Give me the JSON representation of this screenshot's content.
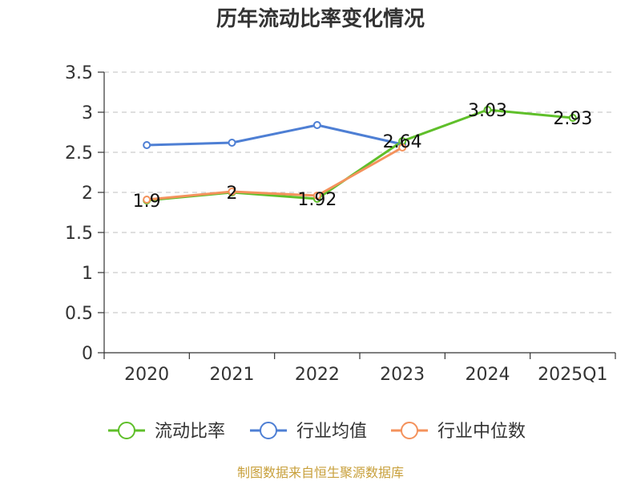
{
  "chart_data": {
    "type": "line",
    "title": "历年流动比率变化情况",
    "categories": [
      "2020",
      "2021",
      "2022",
      "2023",
      "2024",
      "2025Q1"
    ],
    "ylim": [
      0,
      3.5
    ],
    "yticks": [
      "0",
      "0.5",
      "1",
      "1.5",
      "2",
      "2.5",
      "3",
      "3.5"
    ],
    "grid": true,
    "legend_position": "bottom",
    "series": [
      {
        "name": "流动比率",
        "color": "#5fbf2a",
        "values": [
          1.9,
          2,
          1.92,
          2.64,
          3.03,
          2.93
        ],
        "labels": [
          "1.9",
          "2",
          "1.92",
          "2.64",
          "3.03",
          "2.93"
        ]
      },
      {
        "name": "行业均值",
        "color": "#4e7fd4",
        "values": [
          2.59,
          2.62,
          2.84,
          2.6,
          null,
          null
        ]
      },
      {
        "name": "行业中位数",
        "color": "#f4925c",
        "values": [
          1.91,
          2.01,
          1.96,
          2.56,
          null,
          null
        ]
      }
    ],
    "source": "制图数据来自恒生聚源数据库"
  }
}
